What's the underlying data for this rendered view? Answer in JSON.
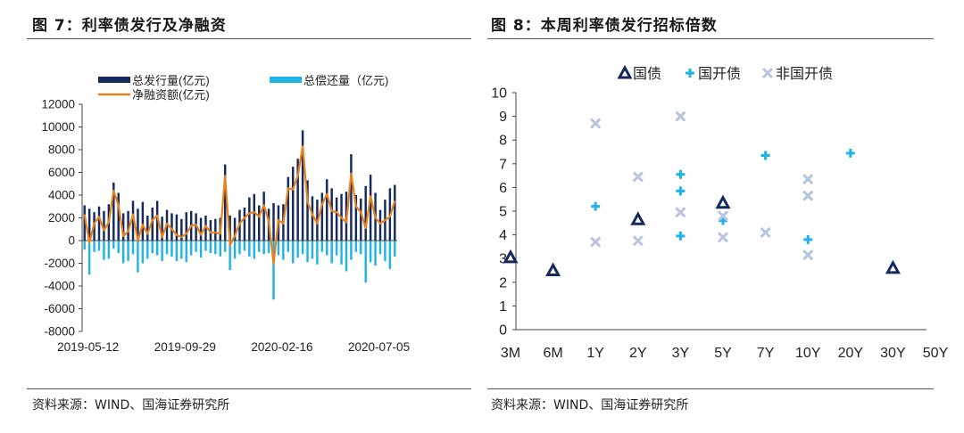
{
  "left_panel": {
    "title": "图 7：利率债发行及净融资",
    "source": "资料来源：WIND、国海证券研究所"
  },
  "right_panel": {
    "title": "图 8：本周利率债发行招标倍数",
    "source": "资料来源：WIND、国海证券研究所"
  },
  "colors": {
    "issuance": "#14295e",
    "repayment": "#1fb3e6",
    "net": "#e8821e",
    "guozhai": "#14295e",
    "guokai": "#1fb3e6",
    "feiguokai": "#b6c4e0"
  },
  "chart_data": [
    {
      "type": "bar",
      "legend": [
        "总发行量(亿元)",
        "总偿还量（亿元)",
        "净融资额(亿元)"
      ],
      "legend_placement": "top",
      "ylim": [
        -8000,
        12000
      ],
      "yticks": [
        -8000,
        -6000,
        -4000,
        -2000,
        0,
        2000,
        4000,
        6000,
        8000,
        10000,
        12000
      ],
      "xtick_labels": [
        "2019-05-12",
        "2019-09-29",
        "2020-02-16",
        "2020-07-05"
      ],
      "xtick_index": [
        0,
        20,
        40,
        60
      ],
      "series": [
        {
          "name": "总发行量(亿元)",
          "kind": "bar",
          "values": [
            3100,
            2800,
            2500,
            3000,
            2600,
            3200,
            5100,
            4200,
            2400,
            2600,
            3500,
            2800,
            3400,
            2200,
            2900,
            3500,
            2100,
            2700,
            2400,
            2300,
            1900,
            2500,
            2600,
            2400,
            2000,
            2200,
            1800,
            1900,
            2000,
            6700,
            2200,
            2000,
            2700,
            2900,
            3800,
            4100,
            3100,
            4300,
            2800,
            3300,
            3100,
            3200,
            5600,
            6500,
            7200,
            9700,
            5300,
            3900,
            3600,
            4200,
            5400,
            4600,
            3800,
            4100,
            4300,
            7600,
            4000,
            3700,
            4800,
            5800,
            4200,
            2700,
            3600,
            4600,
            4900
          ]
        },
        {
          "name": "总偿还量（亿元)",
          "kind": "bar",
          "values": [
            -800,
            -3000,
            -1000,
            -900,
            -1700,
            -1600,
            -700,
            -1100,
            -2000,
            -1800,
            -1200,
            -2800,
            -2000,
            -1600,
            -1100,
            -1300,
            -1800,
            -1200,
            -1400,
            -1800,
            -1600,
            -1900,
            -1300,
            -1000,
            -1500,
            -900,
            -1100,
            -1200,
            -1400,
            -1000,
            -2600,
            -1600,
            -1200,
            -900,
            -1400,
            -1600,
            -1000,
            -1200,
            -1100,
            -5200,
            -1300,
            -1700,
            -1000,
            -2000,
            -1500,
            -1200,
            -1900,
            -1600,
            -2100,
            -1000,
            -1300,
            -2000,
            -1300,
            -2100,
            -2700,
            -1700,
            -1000,
            -1200,
            -3700,
            -1900,
            -2200,
            -1200,
            -1800,
            -2500,
            -1400
          ]
        },
        {
          "name": "净融资额(亿元)",
          "kind": "line",
          "values": [
            2300,
            -200,
            1500,
            2100,
            900,
            1600,
            4400,
            3100,
            400,
            800,
            2300,
            0,
            1400,
            600,
            1800,
            2200,
            300,
            1500,
            1000,
            500,
            300,
            600,
            1300,
            1400,
            500,
            1300,
            700,
            700,
            600,
            5700,
            -400,
            400,
            1500,
            2000,
            2400,
            2500,
            2100,
            3100,
            1700,
            -2000,
            1800,
            1500,
            4600,
            4500,
            5700,
            8300,
            3400,
            2300,
            1500,
            3200,
            4100,
            2600,
            2500,
            2000,
            1600,
            5900,
            3000,
            2500,
            1100,
            3900,
            2000,
            1500,
            1800,
            2100,
            3500
          ]
        }
      ]
    },
    {
      "type": "scatter",
      "legend": [
        "国债",
        "国开债",
        "非国开债"
      ],
      "legend_placement": "top",
      "ylim": [
        0,
        10
      ],
      "yticks": [
        0,
        1,
        2,
        3,
        4,
        5,
        6,
        7,
        8,
        9,
        10
      ],
      "categories": [
        "3M",
        "6M",
        "1Y",
        "2Y",
        "3Y",
        "5Y",
        "7Y",
        "10Y",
        "20Y",
        "30Y",
        "50Y"
      ],
      "series": [
        {
          "name": "国债",
          "marker": "triangle",
          "points": [
            [
              "3M",
              3.05
            ],
            [
              "6M",
              2.5
            ],
            [
              "2Y",
              4.65
            ],
            [
              "5Y",
              5.35
            ],
            [
              "30Y",
              2.6
            ]
          ]
        },
        {
          "name": "国开债",
          "marker": "plus",
          "points": [
            [
              "1Y",
              5.2
            ],
            [
              "3Y",
              6.55
            ],
            [
              "3Y",
              5.85
            ],
            [
              "3Y",
              3.95
            ],
            [
              "5Y",
              4.6
            ],
            [
              "7Y",
              7.35
            ],
            [
              "10Y",
              3.8
            ],
            [
              "20Y",
              7.45
            ]
          ]
        },
        {
          "name": "非国开债",
          "marker": "cross",
          "points": [
            [
              "1Y",
              8.7
            ],
            [
              "1Y",
              3.7
            ],
            [
              "2Y",
              6.45
            ],
            [
              "2Y",
              3.75
            ],
            [
              "3Y",
              9.0
            ],
            [
              "3Y",
              4.95
            ],
            [
              "5Y",
              4.8
            ],
            [
              "5Y",
              3.9
            ],
            [
              "7Y",
              4.1
            ],
            [
              "10Y",
              6.35
            ],
            [
              "10Y",
              5.65
            ],
            [
              "10Y",
              3.15
            ]
          ]
        }
      ]
    }
  ]
}
